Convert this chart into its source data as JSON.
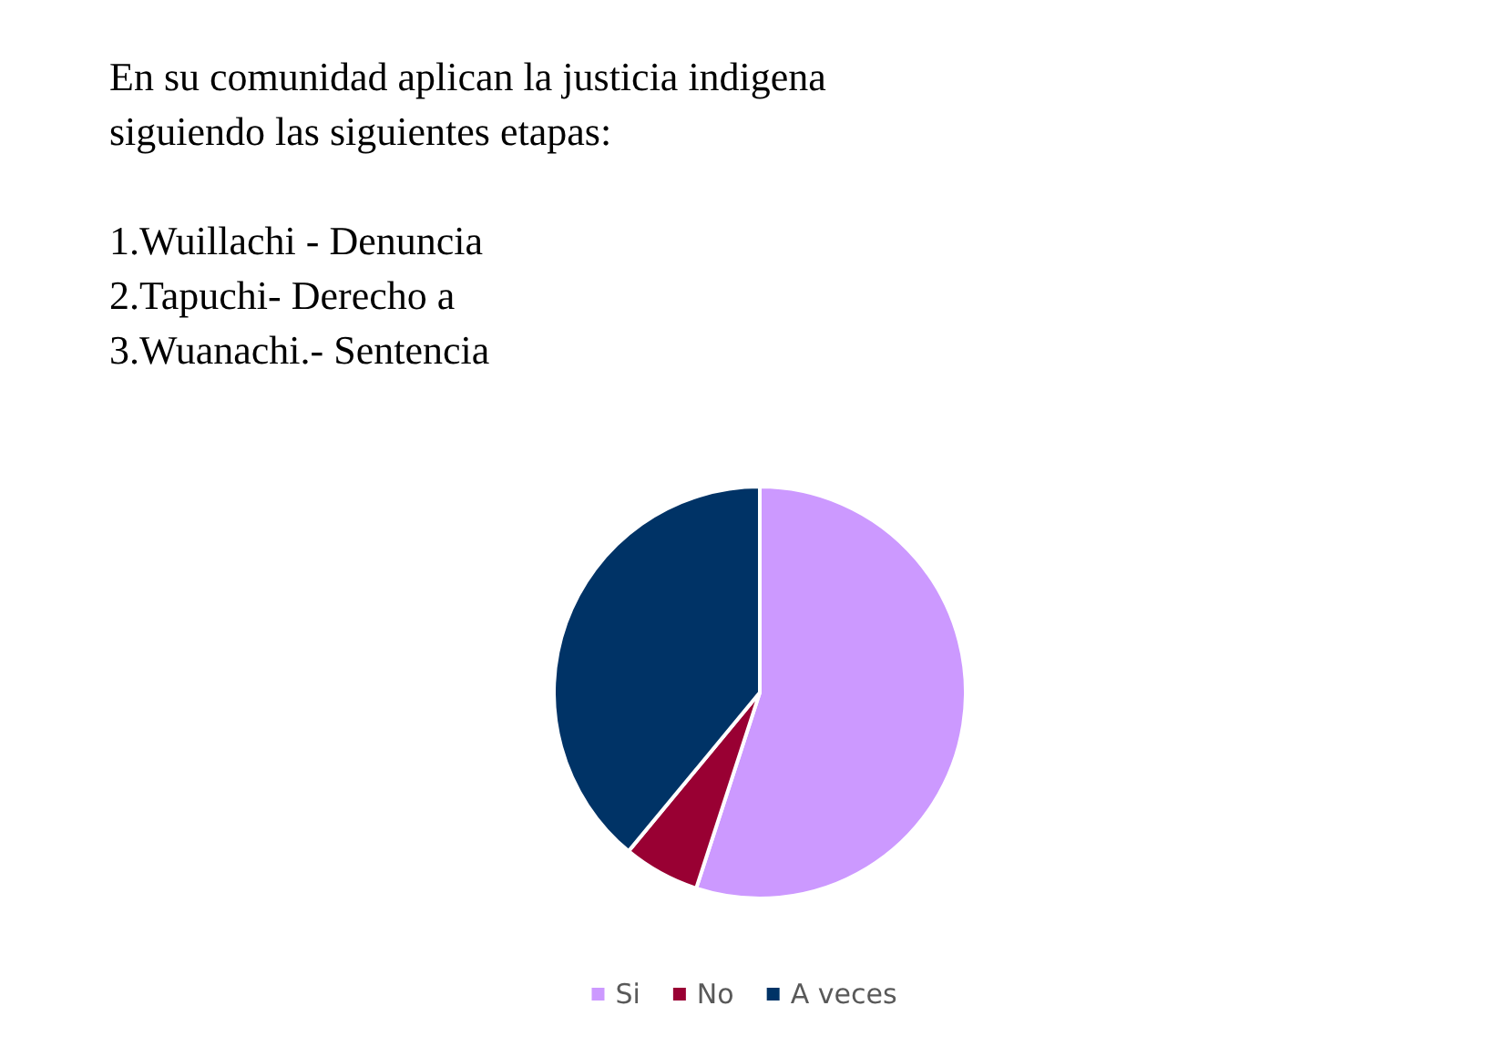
{
  "chart_data": {
    "type": "pie",
    "title": "En su comunidad aplican la justicia indigena\nsiguiendo las siguientes etapas:\n\n1.Wuillachi - Denuncia\n2.Tapuchi- Derecho a\n3.Wuanachi.- Sentencia",
    "categories": [
      "Si",
      "No",
      "A veces"
    ],
    "values": [
      55,
      6,
      39
    ],
    "colors": [
      "#cc99ff",
      "#990033",
      "#003366"
    ],
    "legend": "bottom"
  }
}
